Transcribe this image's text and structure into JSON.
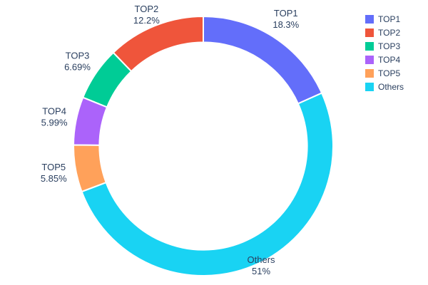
{
  "chart_data": {
    "type": "pie",
    "subtype": "donut",
    "hole": 0.8,
    "title": "",
    "labels": [
      "TOP1",
      "TOP2",
      "TOP3",
      "TOP4",
      "TOP5",
      "Others"
    ],
    "values": [
      18.3,
      12.2,
      6.69,
      5.99,
      5.85,
      51
    ],
    "percent_labels": [
      "18.3%",
      "12.2%",
      "6.69%",
      "5.99%",
      "5.85%",
      "51%"
    ],
    "colors": [
      "#636efa",
      "#ef553b",
      "#00cc96",
      "#ab63fa",
      "#ffa15a",
      "#19d3f3"
    ],
    "legend": {
      "position": "top-right",
      "entries": [
        "TOP1",
        "TOP2",
        "TOP3",
        "TOP4",
        "TOP5",
        "Others"
      ]
    },
    "layout": {
      "background": "#ffffff",
      "text_color": "#2a3f5f",
      "slice_border_color": "#ffffff",
      "labels_outside": true,
      "first_slice_direction": "clockwise-from-top"
    }
  }
}
